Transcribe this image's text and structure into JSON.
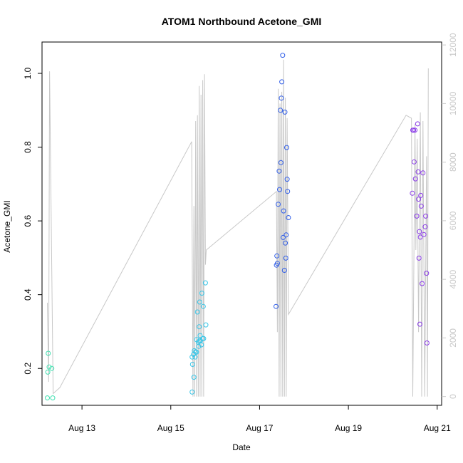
{
  "chart_data": {
    "type": "scatter",
    "title": "ATOM1 Northbound Acetone_GMI",
    "xlabel": "Date",
    "ylabel": "Acetone_GMI",
    "x_unit": "days since Aug 12 00:00",
    "xlim": [
      0.1,
      9.1
    ],
    "ylim": [
      0.1,
      1.085
    ],
    "y_ticks": [
      0.2,
      0.4,
      0.6,
      0.8,
      1.0
    ],
    "y_tick_labels": [
      "0.2",
      "0.4",
      "0.6",
      "0.8",
      "1.0"
    ],
    "x_ticks": [
      1,
      3,
      5,
      7,
      9
    ],
    "x_tick_labels": [
      "Aug 13",
      "Aug 15",
      "Aug 17",
      "Aug 19",
      "Aug 21"
    ],
    "right_axis": {
      "ylim": [
        -300,
        12100
      ],
      "ticks": [
        0,
        2000,
        4000,
        6000,
        8000,
        10000,
        12000
      ],
      "tick_labels": [
        "0",
        "2000",
        "4000",
        "6000",
        "8000",
        "10000",
        "12000"
      ],
      "color": "#c8c8c8"
    },
    "grid": false,
    "legend": "none",
    "series": [
      {
        "color_by": "time (rainbow: cyan-green to purple)",
        "points": [
          {
            "x": 0.22,
            "y": 0.12,
            "color": "#41e0b0"
          },
          {
            "x": 0.23,
            "y": 0.19,
            "color": "#41e0b0"
          },
          {
            "x": 0.24,
            "y": 0.241,
            "color": "#41e0b0"
          },
          {
            "x": 0.26,
            "y": 0.204,
            "color": "#41e0b0"
          },
          {
            "x": 0.32,
            "y": 0.2,
            "color": "#41e0b0"
          },
          {
            "x": 0.34,
            "y": 0.12,
            "color": "#41e0b0"
          },
          {
            "x": 3.48,
            "y": 0.136,
            "color": "#37c6e8"
          },
          {
            "x": 3.48,
            "y": 0.231,
            "color": "#37c6e8"
          },
          {
            "x": 3.49,
            "y": 0.211,
            "color": "#37c6e8"
          },
          {
            "x": 3.51,
            "y": 0.238,
            "color": "#37c6e8"
          },
          {
            "x": 3.52,
            "y": 0.176,
            "color": "#37c6e8"
          },
          {
            "x": 3.53,
            "y": 0.248,
            "color": "#37c6e8"
          },
          {
            "x": 3.55,
            "y": 0.231,
            "color": "#37c6e8"
          },
          {
            "x": 3.56,
            "y": 0.245,
            "color": "#37c6e8"
          },
          {
            "x": 3.58,
            "y": 0.244,
            "color": "#37c6e8"
          },
          {
            "x": 3.58,
            "y": 0.278,
            "color": "#37c6e8"
          },
          {
            "x": 3.6,
            "y": 0.353,
            "color": "#37c6e8"
          },
          {
            "x": 3.62,
            "y": 0.271,
            "color": "#37c6e8"
          },
          {
            "x": 3.63,
            "y": 0.26,
            "color": "#37c6e8"
          },
          {
            "x": 3.64,
            "y": 0.274,
            "color": "#37c6e8"
          },
          {
            "x": 3.64,
            "y": 0.313,
            "color": "#37c6e8"
          },
          {
            "x": 3.65,
            "y": 0.38,
            "color": "#37c6e8"
          },
          {
            "x": 3.66,
            "y": 0.289,
            "color": "#37c6e8"
          },
          {
            "x": 3.67,
            "y": 0.275,
            "color": "#37c6e8"
          },
          {
            "x": 3.69,
            "y": 0.264,
            "color": "#37c6e8"
          },
          {
            "x": 3.7,
            "y": 0.404,
            "color": "#37c6e8"
          },
          {
            "x": 3.72,
            "y": 0.281,
            "color": "#37c6e8"
          },
          {
            "x": 3.73,
            "y": 0.368,
            "color": "#37c6e8"
          },
          {
            "x": 3.74,
            "y": 0.281,
            "color": "#37c6e8"
          },
          {
            "x": 3.78,
            "y": 0.432,
            "color": "#37c6e8"
          },
          {
            "x": 3.79,
            "y": 0.318,
            "color": "#37c6e8"
          },
          {
            "x": 5.37,
            "y": 0.368,
            "color": "#2f5de8"
          },
          {
            "x": 5.38,
            "y": 0.48,
            "color": "#2f5de8"
          },
          {
            "x": 5.39,
            "y": 0.505,
            "color": "#2f5de8"
          },
          {
            "x": 5.4,
            "y": 0.485,
            "color": "#2f5de8"
          },
          {
            "x": 5.42,
            "y": 0.645,
            "color": "#2f5de8"
          },
          {
            "x": 5.44,
            "y": 0.735,
            "color": "#2f5de8"
          },
          {
            "x": 5.45,
            "y": 0.685,
            "color": "#2f5de8"
          },
          {
            "x": 5.47,
            "y": 0.9,
            "color": "#2f5de8"
          },
          {
            "x": 5.48,
            "y": 0.758,
            "color": "#2f5de8"
          },
          {
            "x": 5.49,
            "y": 0.933,
            "color": "#2f5de8"
          },
          {
            "x": 5.5,
            "y": 0.977,
            "color": "#2f5de8"
          },
          {
            "x": 5.52,
            "y": 1.049,
            "color": "#2f5de8"
          },
          {
            "x": 5.53,
            "y": 0.555,
            "color": "#2f5de8"
          },
          {
            "x": 5.54,
            "y": 0.627,
            "color": "#2f5de8"
          },
          {
            "x": 5.56,
            "y": 0.466,
            "color": "#2f5de8"
          },
          {
            "x": 5.57,
            "y": 0.895,
            "color": "#2f5de8"
          },
          {
            "x": 5.58,
            "y": 0.54,
            "color": "#2f5de8"
          },
          {
            "x": 5.59,
            "y": 0.499,
            "color": "#2f5de8"
          },
          {
            "x": 5.6,
            "y": 0.562,
            "color": "#2f5de8"
          },
          {
            "x": 5.61,
            "y": 0.799,
            "color": "#2f5de8"
          },
          {
            "x": 5.62,
            "y": 0.713,
            "color": "#2f5de8"
          },
          {
            "x": 5.63,
            "y": 0.68,
            "color": "#2f5de8"
          },
          {
            "x": 5.65,
            "y": 0.609,
            "color": "#2f5de8"
          },
          {
            "x": 8.44,
            "y": 0.675,
            "color": "#8a3be8"
          },
          {
            "x": 8.45,
            "y": 0.846,
            "color": "#8a3be8"
          },
          {
            "x": 8.47,
            "y": 0.846,
            "color": "#8a3be8"
          },
          {
            "x": 8.48,
            "y": 0.76,
            "color": "#8a3be8"
          },
          {
            "x": 8.5,
            "y": 0.846,
            "color": "#8a3be8"
          },
          {
            "x": 8.51,
            "y": 0.714,
            "color": "#8a3be8"
          },
          {
            "x": 8.54,
            "y": 0.613,
            "color": "#8a3be8"
          },
          {
            "x": 8.56,
            "y": 0.863,
            "color": "#8a3be8"
          },
          {
            "x": 8.57,
            "y": 0.733,
            "color": "#8a3be8"
          },
          {
            "x": 8.58,
            "y": 0.659,
            "color": "#8a3be8"
          },
          {
            "x": 8.59,
            "y": 0.499,
            "color": "#8a3be8"
          },
          {
            "x": 8.6,
            "y": 0.571,
            "color": "#8a3be8"
          },
          {
            "x": 8.61,
            "y": 0.32,
            "color": "#8a3be8"
          },
          {
            "x": 8.62,
            "y": 0.556,
            "color": "#8a3be8"
          },
          {
            "x": 8.63,
            "y": 0.669,
            "color": "#8a3be8"
          },
          {
            "x": 8.64,
            "y": 0.64,
            "color": "#8a3be8"
          },
          {
            "x": 8.66,
            "y": 0.43,
            "color": "#8a3be8"
          },
          {
            "x": 8.68,
            "y": 0.73,
            "color": "#8a3be8"
          },
          {
            "x": 8.7,
            "y": 0.563,
            "color": "#8a3be8"
          },
          {
            "x": 8.73,
            "y": 0.584,
            "color": "#8a3be8"
          },
          {
            "x": 8.74,
            "y": 0.613,
            "color": "#8a3be8"
          },
          {
            "x": 8.76,
            "y": 0.458,
            "color": "#8a3be8"
          },
          {
            "x": 8.77,
            "y": 0.269,
            "color": "#8a3be8"
          }
        ]
      },
      {
        "axis": "right",
        "type": "line",
        "color": "#c8c8c8",
        "points": [
          [
            0.22,
            3200
          ],
          [
            0.25,
            500
          ],
          [
            0.27,
            11100
          ],
          [
            0.35,
            100
          ],
          [
            0.5,
            300
          ],
          [
            3.47,
            8700
          ],
          [
            3.5,
            0
          ],
          [
            3.52,
            6500
          ],
          [
            3.54,
            0
          ],
          [
            3.56,
            9400
          ],
          [
            3.58,
            0
          ],
          [
            3.6,
            9600
          ],
          [
            3.62,
            0
          ],
          [
            3.64,
            10600
          ],
          [
            3.66,
            0
          ],
          [
            3.68,
            10300
          ],
          [
            3.7,
            0
          ],
          [
            3.72,
            10800
          ],
          [
            3.74,
            0
          ],
          [
            3.76,
            11000
          ],
          [
            3.78,
            4500
          ],
          [
            3.8,
            5000
          ],
          [
            5.38,
            7000
          ],
          [
            5.4,
            2200
          ],
          [
            5.42,
            10500
          ],
          [
            5.44,
            0
          ],
          [
            5.46,
            10000
          ],
          [
            5.48,
            0
          ],
          [
            5.5,
            10400
          ],
          [
            5.52,
            0
          ],
          [
            5.54,
            11500
          ],
          [
            5.56,
            0
          ],
          [
            5.58,
            10200
          ],
          [
            5.6,
            0
          ],
          [
            5.62,
            9500
          ],
          [
            5.65,
            2800
          ],
          [
            8.3,
            9600
          ],
          [
            8.42,
            9500
          ],
          [
            8.45,
            0
          ],
          [
            8.5,
            9300
          ],
          [
            8.52,
            5000
          ],
          [
            8.55,
            8800
          ],
          [
            8.58,
            2200
          ],
          [
            8.62,
            9700
          ],
          [
            8.65,
            0
          ],
          [
            8.68,
            9400
          ],
          [
            8.72,
            0
          ],
          [
            8.76,
            8200
          ],
          [
            8.78,
            0
          ],
          [
            8.8,
            11200
          ]
        ]
      }
    ]
  }
}
